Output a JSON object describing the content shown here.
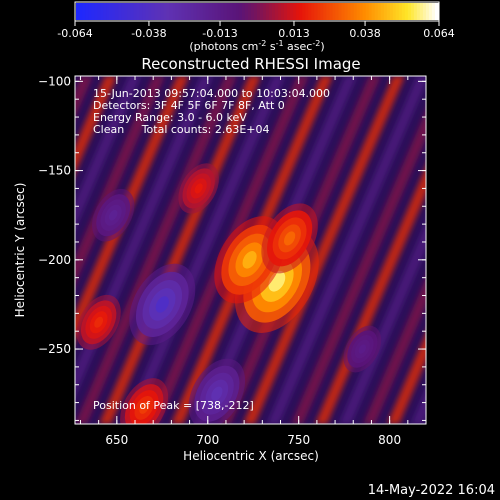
{
  "chart_data": {
    "type": "heatmap",
    "title": "Reconstructed RHESSI Image",
    "xlabel": "Heliocentric X (arcsec)",
    "ylabel": "Heliocentric Y (arcsec)",
    "x_ticks": [
      650,
      700,
      750,
      800
    ],
    "y_ticks": [
      -100,
      -150,
      -200,
      -250
    ],
    "xlim": [
      627,
      820
    ],
    "ylim": [
      -292,
      -97
    ],
    "colorbar": {
      "ticks": [
        "-0.064",
        "-0.038",
        "-0.013",
        "0.013",
        "0.038",
        "0.064"
      ],
      "range": [
        -0.064,
        0.064
      ],
      "unit_prefix": "(photons cm",
      "unit_exp1": "-2",
      "unit_mid": " s",
      "unit_exp2": "-1",
      "unit_mid2": " asec",
      "unit_exp3": "-2",
      "unit_suffix": ")"
    },
    "annotations": [
      "15-Jun-2013 09:57:04.000 to 10:03:04.000",
      "Detectors: 3F 4F 5F 6F 7F 8F, Att 0",
      "Energy Range: 3.0 - 6.0 keV",
      "Clean     Total counts: 2.63E+04"
    ],
    "peak_label": "Position of Peak = [738,-212]",
    "peak": {
      "x": 738,
      "y": -212,
      "value": 0.064
    },
    "sources": [
      {
        "x": 738,
        "y": -212,
        "value": 0.064
      },
      {
        "x": 723,
        "y": -200,
        "value": 0.05
      },
      {
        "x": 745,
        "y": -188,
        "value": 0.035
      },
      {
        "x": 665,
        "y": -283,
        "value": 0.026
      },
      {
        "x": 640,
        "y": -235,
        "value": 0.022
      },
      {
        "x": 695,
        "y": -160,
        "value": 0.018
      },
      {
        "x": 675,
        "y": -225,
        "value": -0.045
      },
      {
        "x": 705,
        "y": -275,
        "value": -0.035
      },
      {
        "x": 648,
        "y": -175,
        "value": -0.02
      },
      {
        "x": 785,
        "y": -250,
        "value": -0.015
      }
    ]
  },
  "timestamp": "14-May-2022 16:04"
}
